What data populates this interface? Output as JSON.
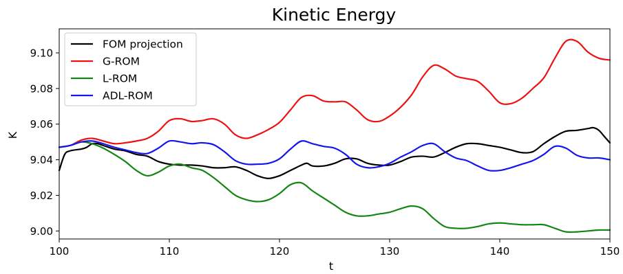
{
  "chart_data": {
    "type": "line",
    "title": "Kinetic Energy",
    "xlabel": "t",
    "ylabel": "K",
    "xlim": [
      100,
      150
    ],
    "ylim": [
      8.9955,
      9.1135
    ],
    "xticks": [
      100,
      110,
      120,
      130,
      140,
      150
    ],
    "xtick_labels": [
      "100",
      "110",
      "120",
      "130",
      "140",
      "150"
    ],
    "yticks": [
      9.0,
      9.02,
      9.04,
      9.06,
      9.08,
      9.1
    ],
    "ytick_labels": [
      "9.00",
      "9.02",
      "9.04",
      "9.06",
      "9.08",
      "9.10"
    ],
    "grid": false,
    "legend_position": "upper-left",
    "series": [
      {
        "name": "FOM projection",
        "color": "#000000",
        "x": [
          100,
          100.5,
          101,
          102,
          102.5,
          103,
          103.5,
          104,
          105,
          106,
          107,
          108,
          109,
          110,
          111,
          112,
          113,
          114,
          115,
          116,
          117,
          118,
          119,
          120,
          121,
          122,
          122.5,
          123,
          124,
          125,
          126,
          127,
          128,
          129,
          130,
          131,
          132,
          133,
          134,
          135,
          136,
          137,
          138,
          139,
          140,
          141,
          142,
          143,
          144,
          145,
          146,
          147,
          148,
          148.5,
          149,
          149.5,
          150
        ],
        "y": [
          9.034,
          9.043,
          9.045,
          9.046,
          9.047,
          9.049,
          9.049,
          9.048,
          9.046,
          9.045,
          9.043,
          9.042,
          9.039,
          9.0375,
          9.037,
          9.037,
          9.0365,
          9.0355,
          9.0355,
          9.036,
          9.034,
          9.031,
          9.0295,
          9.031,
          9.034,
          9.037,
          9.038,
          9.0365,
          9.0365,
          9.038,
          9.0405,
          9.0405,
          9.038,
          9.037,
          9.037,
          9.039,
          9.0415,
          9.042,
          9.0415,
          9.044,
          9.047,
          9.049,
          9.049,
          9.048,
          9.047,
          9.0455,
          9.044,
          9.0445,
          9.049,
          9.053,
          9.056,
          9.0565,
          9.0575,
          9.058,
          9.0565,
          9.053,
          9.0495
        ]
      },
      {
        "name": "G-ROM",
        "color": "#ee1111",
        "x": [
          100,
          101,
          102,
          103,
          104,
          105,
          106,
          107,
          108,
          109,
          110,
          111,
          112,
          113,
          114,
          115,
          116,
          117,
          118,
          119,
          120,
          121,
          122,
          123,
          124,
          125,
          126,
          127,
          128,
          129,
          130,
          131,
          132,
          133,
          134,
          135,
          136,
          137,
          138,
          139,
          140,
          141,
          142,
          143,
          144,
          145,
          146,
          147,
          148,
          149,
          150
        ],
        "y": [
          9.047,
          9.048,
          9.051,
          9.052,
          9.0505,
          9.049,
          9.0495,
          9.0505,
          9.052,
          9.056,
          9.062,
          9.063,
          9.0615,
          9.062,
          9.063,
          9.06,
          9.054,
          9.052,
          9.054,
          9.057,
          9.061,
          9.068,
          9.075,
          9.076,
          9.073,
          9.0725,
          9.0725,
          9.068,
          9.0625,
          9.0615,
          9.0645,
          9.0695,
          9.0765,
          9.0865,
          9.093,
          9.091,
          9.087,
          9.0855,
          9.084,
          9.0785,
          9.072,
          9.0715,
          9.0745,
          9.08,
          9.086,
          9.097,
          9.1065,
          9.1065,
          9.1005,
          9.097,
          9.096
        ]
      },
      {
        "name": "L-ROM",
        "color": "#138513",
        "x": [
          100,
          101,
          102,
          103,
          104,
          105,
          106,
          107,
          108,
          109,
          110,
          111,
          112,
          113,
          114,
          115,
          116,
          117,
          118,
          119,
          120,
          121,
          122,
          123,
          124,
          125,
          126,
          127,
          128,
          129,
          130,
          131,
          132,
          133,
          134,
          135,
          136,
          137,
          138,
          139,
          140,
          141,
          142,
          143,
          144,
          145,
          146,
          147,
          148,
          149,
          150
        ],
        "y": [
          9.047,
          9.048,
          9.05,
          9.049,
          9.0465,
          9.043,
          9.039,
          9.034,
          9.031,
          9.033,
          9.0365,
          9.0375,
          9.0355,
          9.034,
          9.03,
          9.025,
          9.02,
          9.0175,
          9.0165,
          9.0175,
          9.021,
          9.026,
          9.027,
          9.0225,
          9.0185,
          9.0145,
          9.0105,
          9.0085,
          9.0085,
          9.0095,
          9.0105,
          9.0125,
          9.014,
          9.0125,
          9.007,
          9.0025,
          9.0015,
          9.0015,
          9.0025,
          9.004,
          9.0045,
          9.004,
          9.0035,
          9.0035,
          9.0035,
          9.0015,
          8.9995,
          8.9995,
          9.0,
          9.0005,
          9.0005
        ]
      },
      {
        "name": "ADL-ROM",
        "color": "#1515ee",
        "x": [
          100,
          101,
          102,
          103,
          104,
          105,
          106,
          107,
          108,
          109,
          110,
          111,
          112,
          113,
          114,
          115,
          116,
          117,
          118,
          119,
          120,
          121,
          122,
          123,
          124,
          125,
          126,
          127,
          128,
          129,
          130,
          131,
          132,
          133,
          134,
          135,
          136,
          137,
          138,
          139,
          140,
          141,
          142,
          143,
          144,
          145,
          146,
          147,
          148,
          149,
          150
        ],
        "y": [
          9.047,
          9.048,
          9.05,
          9.0505,
          9.049,
          9.047,
          9.0455,
          9.044,
          9.0435,
          9.0465,
          9.0505,
          9.05,
          9.049,
          9.0495,
          9.0485,
          9.0445,
          9.0395,
          9.0375,
          9.0375,
          9.038,
          9.0405,
          9.046,
          9.0505,
          9.049,
          9.0475,
          9.0465,
          9.043,
          9.0375,
          9.0355,
          9.036,
          9.038,
          9.0415,
          9.0445,
          9.048,
          9.049,
          9.0445,
          9.041,
          9.0395,
          9.0365,
          9.034,
          9.034,
          9.0355,
          9.0375,
          9.0395,
          9.043,
          9.0475,
          9.0465,
          9.0425,
          9.041,
          9.041,
          9.04
        ]
      }
    ]
  }
}
